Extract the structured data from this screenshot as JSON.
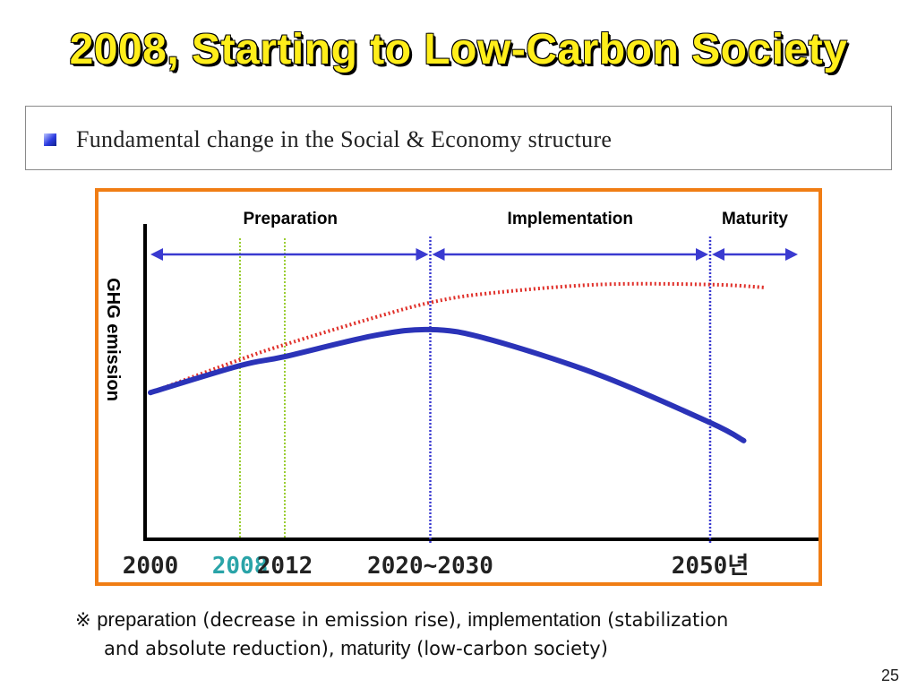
{
  "slide": {
    "title": "2008, Starting to Low-Carbon Society",
    "subtitle": "Fundamental change in the Social & Economy structure",
    "note_mark": "※",
    "note_preparation_kw": "preparation",
    "note_preparation_desc": " (decrease in emission rise), ",
    "note_implementation_kw": "implementation",
    "note_implementation_desc": " (stabilization",
    "note_line2_prefix": "and absolute reduction), ",
    "note_maturity_kw": "maturity",
    "note_maturity_desc": " (low-carbon society)",
    "page_number": "25"
  },
  "chart_data": {
    "type": "line",
    "ylabel": "GHG emission",
    "tick_labels": [
      {
        "label": "2000",
        "year": 2000,
        "color": "#222222"
      },
      {
        "label": "2008",
        "year": 2008,
        "color": "#2aa4a8"
      },
      {
        "label": "2012",
        "year": 2012,
        "color": "#222222"
      },
      {
        "label": "2020~2030",
        "year": 2025,
        "color": "#222222"
      },
      {
        "label": "2050년",
        "year": 2050,
        "color": "#222222"
      }
    ],
    "phases": [
      {
        "name": "Preparation",
        "start": 2000,
        "end": 2025
      },
      {
        "name": "Implementation",
        "start": 2025,
        "end": 2050
      },
      {
        "name": "Maturity",
        "start": 2050,
        "end": 2058
      }
    ],
    "phase_boundaries": [
      2025,
      2050
    ],
    "marker_lines": [
      2008,
      2012
    ],
    "x_domain": [
      2000,
      2060
    ],
    "y_domain": [
      0,
      1
    ],
    "series": [
      {
        "style": "dotted",
        "color": "#e0302a",
        "points": [
          [
            2000,
            0.45
          ],
          [
            2008,
            0.56
          ],
          [
            2012,
            0.61
          ],
          [
            2020,
            0.7
          ],
          [
            2025,
            0.75
          ],
          [
            2030,
            0.78
          ],
          [
            2040,
            0.81
          ],
          [
            2050,
            0.81
          ],
          [
            2055,
            0.8
          ]
        ]
      },
      {
        "style": "solid",
        "color": "#2b33b8",
        "points": [
          [
            2000,
            0.45
          ],
          [
            2008,
            0.54
          ],
          [
            2012,
            0.57
          ],
          [
            2020,
            0.64
          ],
          [
            2025,
            0.66
          ],
          [
            2030,
            0.63
          ],
          [
            2040,
            0.51
          ],
          [
            2050,
            0.35
          ],
          [
            2053,
            0.29
          ]
        ]
      }
    ],
    "colors": {
      "frame": "#f07d14",
      "axis": "#000000",
      "arrow": "#3a3ad0",
      "boundary": "#3a3ad0",
      "marker": "#9acd32",
      "phase_label": "#000000"
    }
  }
}
